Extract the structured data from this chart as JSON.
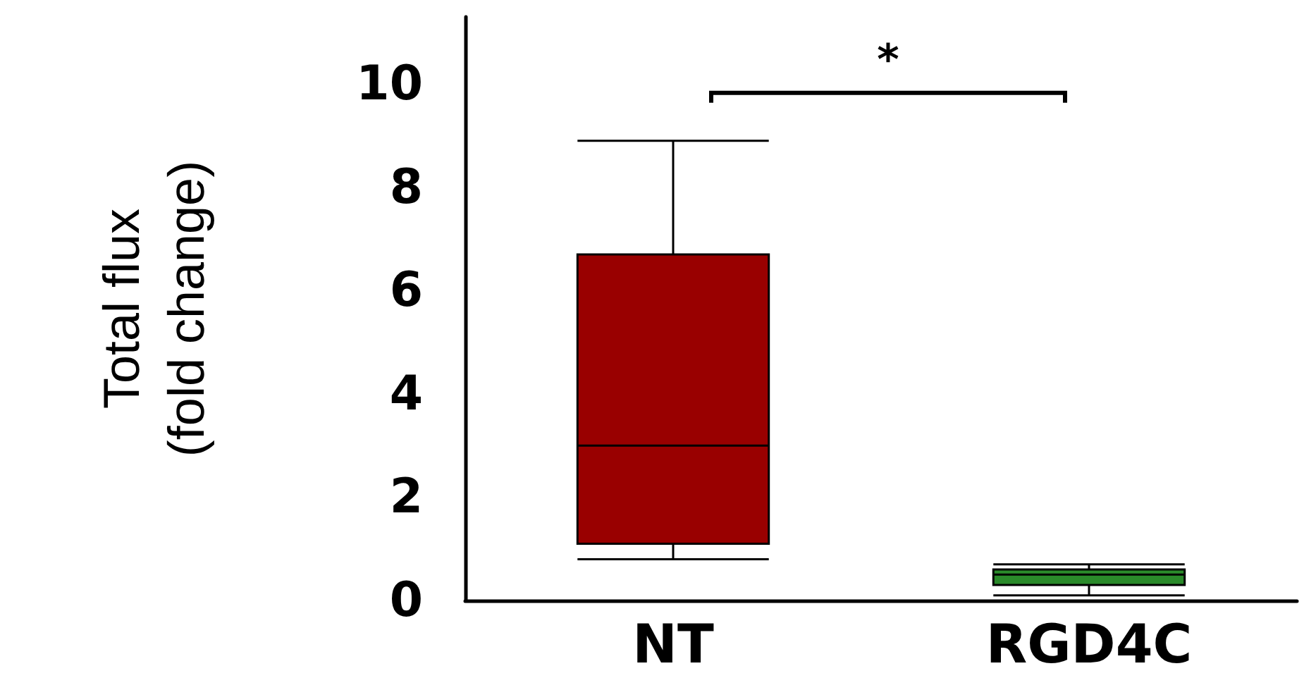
{
  "chart_data": {
    "type": "box",
    "ylabel": "Total flux\n(fold change)",
    "categories": [
      "NT",
      "RGD4C"
    ],
    "boxes": [
      {
        "low": 0.8,
        "q1": 1.1,
        "median": 3.0,
        "q3": 6.7,
        "high": 8.9
      },
      {
        "low": 0.1,
        "q1": 0.3,
        "median": 0.5,
        "q3": 0.6,
        "high": 0.7
      }
    ],
    "colors": [
      "#990000",
      "#2a8a2a"
    ],
    "ylim": [
      0,
      11.3
    ],
    "yticks": [
      0,
      2,
      4,
      6,
      8,
      10
    ],
    "grid": false,
    "annotations": [
      "*"
    ]
  }
}
